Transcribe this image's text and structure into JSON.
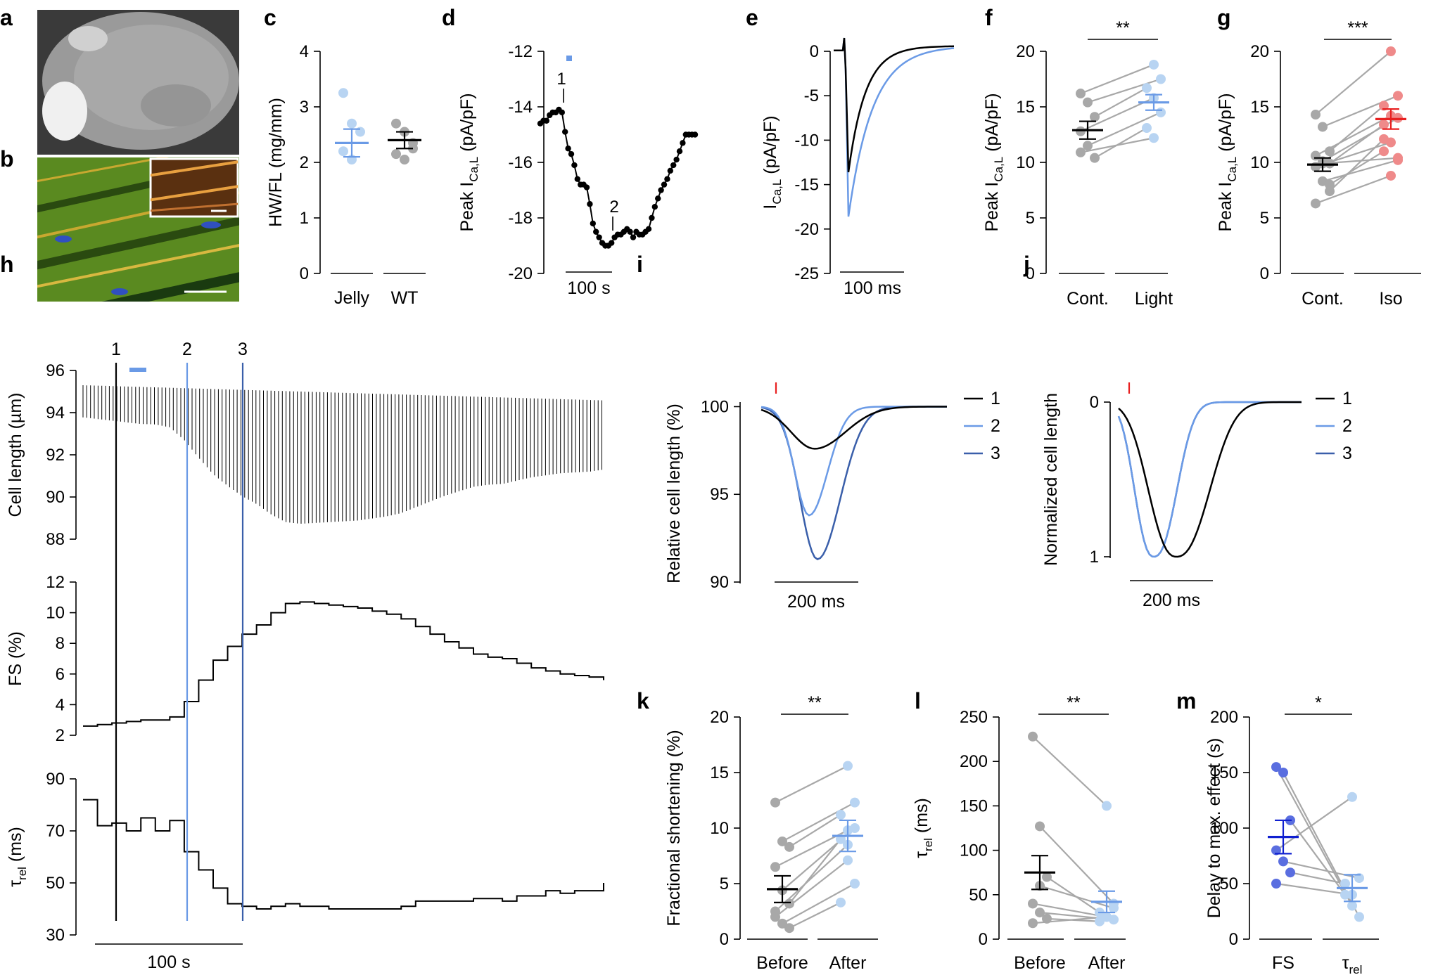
{
  "colors": {
    "black": "#000000",
    "light_blue": "#b8d4f2",
    "blue": "#6a9ae6",
    "dark_blue": "#3a5faa",
    "gray": "#a8a8a8",
    "pink": "#ef8a8a",
    "red": "#e82020",
    "purple": "#5a6ee0",
    "navy": "#1020d0"
  },
  "panels": {
    "a": "a",
    "b": "b",
    "c": "c",
    "d": "d",
    "e": "e",
    "f": "f",
    "g": "g",
    "h": "h",
    "i": "i",
    "j": "j",
    "k": "k",
    "l": "l",
    "m": "m"
  },
  "images": {
    "a": "Whole heart image",
    "b": "Fluorescence micrograph of cardiomyocytes with inset"
  },
  "chart_data": [
    {
      "id": "c",
      "type": "scatter",
      "ylabel": "HW/FL (mg/mm)",
      "ylim": [
        0,
        4
      ],
      "yticks": [
        0,
        1,
        2,
        3,
        4
      ],
      "categories": [
        "Jelly",
        "WT"
      ],
      "groups": [
        {
          "name": "Jelly",
          "points": [
            3.25,
            2.7,
            2.55,
            2.2,
            2.05
          ],
          "mean": 2.35,
          "sem_low": 2.1,
          "sem_high": 2.6
        },
        {
          "name": "WT",
          "points": [
            2.7,
            2.55,
            2.35,
            2.15,
            2.05,
            2.25
          ],
          "mean": 2.4,
          "sem_low": 2.25,
          "sem_high": 2.55
        }
      ]
    },
    {
      "id": "d",
      "type": "line",
      "ylabel": "Peak I",
      "ylabel_sub": "Ca,L",
      "ylabel_unit": " (pA/pF)",
      "ylim": [
        -20,
        -12
      ],
      "yticks": [
        "-12",
        "-14",
        "-16",
        "-18",
        "-20"
      ],
      "scalebar": "100 s",
      "marker_1": "1",
      "marker_2": "2",
      "x": [
        0,
        4,
        8,
        12,
        16,
        20,
        24,
        28,
        32,
        36,
        40,
        44,
        48,
        52,
        56,
        60,
        64,
        68,
        72,
        76,
        80,
        84,
        88,
        92,
        96,
        100,
        104,
        108,
        112,
        116,
        120,
        124,
        128,
        132,
        136,
        140,
        144,
        148,
        152,
        156,
        160,
        164,
        168,
        172,
        176,
        180,
        184,
        188,
        192,
        196,
        200,
        204,
        208,
        212,
        216,
        220
      ],
      "y": [
        -14.6,
        -14.5,
        -14.5,
        -14.3,
        -14.2,
        -14.2,
        -14.1,
        -14.2,
        -14.9,
        -15.5,
        -15.7,
        -16.1,
        -16.6,
        -16.8,
        -16.8,
        -16.9,
        -17.5,
        -18.2,
        -18.5,
        -18.7,
        -18.9,
        -19.0,
        -19.0,
        -18.9,
        -18.7,
        -18.6,
        -18.6,
        -18.5,
        -18.4,
        -18.5,
        -18.7,
        -18.5,
        -18.6,
        -18.6,
        -18.5,
        -18.4,
        -18.0,
        -17.6,
        -17.3,
        -17.0,
        -16.8,
        -16.6,
        -16.3,
        -16.1,
        -15.9,
        -15.6,
        -15.3,
        -15.0,
        -15.0,
        -15.0,
        -15.0,
        -15.0,
        -15.0,
        -15.0,
        -15.0,
        -15.0
      ]
    },
    {
      "id": "e",
      "type": "line",
      "ylabel": "I",
      "ylabel_sub": "Ca,L",
      "ylabel_unit": " (pA/pF)",
      "ylim": [
        -25,
        0
      ],
      "yticks": [
        "0",
        "-5",
        "-10",
        "-15",
        "-20",
        "-25"
      ],
      "scalebar": "100 ms",
      "series": [
        {
          "name": "control",
          "peak": -13.6
        },
        {
          "name": "light",
          "peak": -18.6
        }
      ]
    },
    {
      "id": "f",
      "type": "scatter",
      "ylabel": "Peak I",
      "ylabel_sub": "Ca,L",
      "ylabel_unit": " (pA/pF)",
      "ylim": [
        0,
        20
      ],
      "yticks": [
        0,
        5,
        10,
        15,
        20
      ],
      "categories": [
        "Cont.",
        "Light"
      ],
      "significance": "**",
      "pairs": [
        [
          16.2,
          18.8
        ],
        [
          15.4,
          17.5
        ],
        [
          14.1,
          16.7
        ],
        [
          12.8,
          15.8
        ],
        [
          11.5,
          14.5
        ],
        [
          10.4,
          13.1
        ],
        [
          10.9,
          12.2
        ]
      ],
      "means": [
        12.9,
        15.4
      ],
      "sems": [
        0.8,
        0.7
      ]
    },
    {
      "id": "g",
      "type": "scatter",
      "ylabel": "Peak I",
      "ylabel_sub": "Ca,L",
      "ylabel_unit": " (pA/pF)",
      "ylim": [
        0,
        20
      ],
      "yticks": [
        0,
        5,
        10,
        15,
        20
      ],
      "categories": [
        "Cont.",
        "Iso"
      ],
      "significance": "***",
      "pairs": [
        [
          14.3,
          20.0
        ],
        [
          13.2,
          16.0
        ],
        [
          11.0,
          15.1
        ],
        [
          10.6,
          14.2
        ],
        [
          10.1,
          14.0
        ],
        [
          9.9,
          13.4
        ],
        [
          9.6,
          11.8
        ],
        [
          8.3,
          10.2
        ],
        [
          7.4,
          12.1
        ],
        [
          6.3,
          8.8
        ],
        [
          9.9,
          10.4
        ],
        [
          8.0,
          11.0
        ]
      ],
      "means": [
        9.8,
        13.9
      ],
      "sems": [
        0.6,
        0.9
      ]
    },
    {
      "id": "h",
      "type": "line",
      "scalebar": "100 s",
      "event_labels": [
        "1",
        "2",
        "3"
      ],
      "panels": [
        {
          "ylabel": "Cell length (µm)",
          "ylim": [
            88,
            96
          ],
          "yticks": [
            88,
            90,
            92,
            94,
            96
          ]
        },
        {
          "ylabel": "FS (%)",
          "ylim": [
            2,
            12
          ],
          "yticks": [
            2,
            4,
            6,
            8,
            10,
            12
          ],
          "x": [
            0,
            10,
            20,
            30,
            40,
            50,
            60,
            70,
            80,
            90,
            100,
            110,
            120,
            130,
            140,
            150,
            160,
            170,
            180,
            190,
            200,
            210,
            220,
            230,
            240,
            250,
            260,
            270,
            280,
            290,
            300,
            310,
            320,
            330,
            340,
            350,
            360
          ],
          "y": [
            2.6,
            2.7,
            2.8,
            2.9,
            3.0,
            3.0,
            3.2,
            4.2,
            5.6,
            6.9,
            7.8,
            8.6,
            9.2,
            10.0,
            10.6,
            10.7,
            10.6,
            10.5,
            10.4,
            10.3,
            10.1,
            9.9,
            9.6,
            9.1,
            8.6,
            8.1,
            7.7,
            7.3,
            7.1,
            7.0,
            6.7,
            6.4,
            6.2,
            6.0,
            5.9,
            5.8,
            5.6
          ]
        },
        {
          "ylabel": "τ",
          "ylabel_sub": "rel",
          "ylabel_unit": " (ms)",
          "ylim": [
            30,
            90
          ],
          "yticks": [
            30,
            50,
            70,
            90
          ],
          "x": [
            0,
            10,
            20,
            30,
            40,
            50,
            60,
            70,
            80,
            90,
            100,
            110,
            120,
            130,
            140,
            150,
            160,
            170,
            180,
            190,
            200,
            210,
            220,
            230,
            240,
            250,
            260,
            270,
            280,
            290,
            300,
            310,
            320,
            330,
            340,
            350,
            360
          ],
          "y": [
            82,
            72,
            73,
            70,
            75,
            70,
            74,
            62,
            55,
            48,
            42,
            41,
            40,
            41,
            42,
            41,
            41,
            40,
            40,
            40,
            40,
            40,
            41,
            43,
            43,
            43,
            43,
            44,
            44,
            43,
            45,
            45,
            47,
            46,
            47,
            47,
            50
          ]
        }
      ]
    },
    {
      "id": "i",
      "type": "line",
      "ylabel": "Relative cell length (%)",
      "ylim": [
        90,
        100.5
      ],
      "yticks": [
        90,
        95,
        100
      ],
      "scalebar": "200 ms",
      "legend": [
        "1",
        "2",
        "3"
      ],
      "series": [
        {
          "name": "1",
          "min": 97.6
        },
        {
          "name": "2",
          "min": 93.8
        },
        {
          "name": "3",
          "min": 91.3
        }
      ]
    },
    {
      "id": "j",
      "type": "line",
      "ylabel": "Normalized cell length",
      "ylim": [
        1,
        0
      ],
      "ytick_labels": [
        "0",
        "1"
      ],
      "scalebar": "200 ms",
      "legend": [
        "1",
        "2",
        "3"
      ]
    },
    {
      "id": "k",
      "type": "scatter",
      "ylabel": "Fractional shortening (%)",
      "ylim": [
        0,
        20
      ],
      "yticks": [
        0,
        5,
        10,
        15,
        20
      ],
      "categories": [
        "Before",
        "After"
      ],
      "significance": "**",
      "pairs": [
        [
          12.3,
          15.6
        ],
        [
          8.8,
          12.3
        ],
        [
          8.3,
          11.2
        ],
        [
          6.5,
          9.8
        ],
        [
          4.4,
          10.0
        ],
        [
          3.2,
          9.0
        ],
        [
          2.5,
          8.5
        ],
        [
          1.4,
          5.0
        ],
        [
          1.0,
          3.3
        ],
        [
          2.0,
          7.1
        ]
      ],
      "means": [
        4.5,
        9.3
      ],
      "sems": [
        1.2,
        1.4
      ]
    },
    {
      "id": "l",
      "type": "scatter",
      "ylabel": "τ",
      "ylabel_sub": "rel",
      "ylabel_unit": " (ms)",
      "ylim": [
        0,
        250
      ],
      "yticks": [
        0,
        50,
        100,
        150,
        200,
        250
      ],
      "categories": [
        "Before",
        "After"
      ],
      "significance": "**",
      "pairs": [
        [
          228,
          150
        ],
        [
          127,
          40
        ],
        [
          70,
          30
        ],
        [
          40,
          25
        ],
        [
          30,
          22
        ],
        [
          23,
          20
        ],
        [
          18,
          25
        ],
        [
          60,
          35
        ]
      ],
      "means": [
        75,
        42
      ],
      "sems": [
        19,
        12
      ]
    },
    {
      "id": "m",
      "type": "scatter",
      "ylabel": "Delay to max. effect (s)",
      "ylim": [
        0,
        200
      ],
      "yticks": [
        0,
        50,
        100,
        150,
        200
      ],
      "categories": [
        "FS",
        "τ"
      ],
      "category_sub": [
        "",
        "rel"
      ],
      "significance": "*",
      "pairs": [
        [
          155,
          30
        ],
        [
          150,
          20
        ],
        [
          107,
          40
        ],
        [
          80,
          128
        ],
        [
          70,
          55
        ],
        [
          60,
          50
        ],
        [
          50,
          40
        ]
      ],
      "means": [
        92,
        46
      ],
      "sems": [
        15,
        12
      ]
    }
  ]
}
